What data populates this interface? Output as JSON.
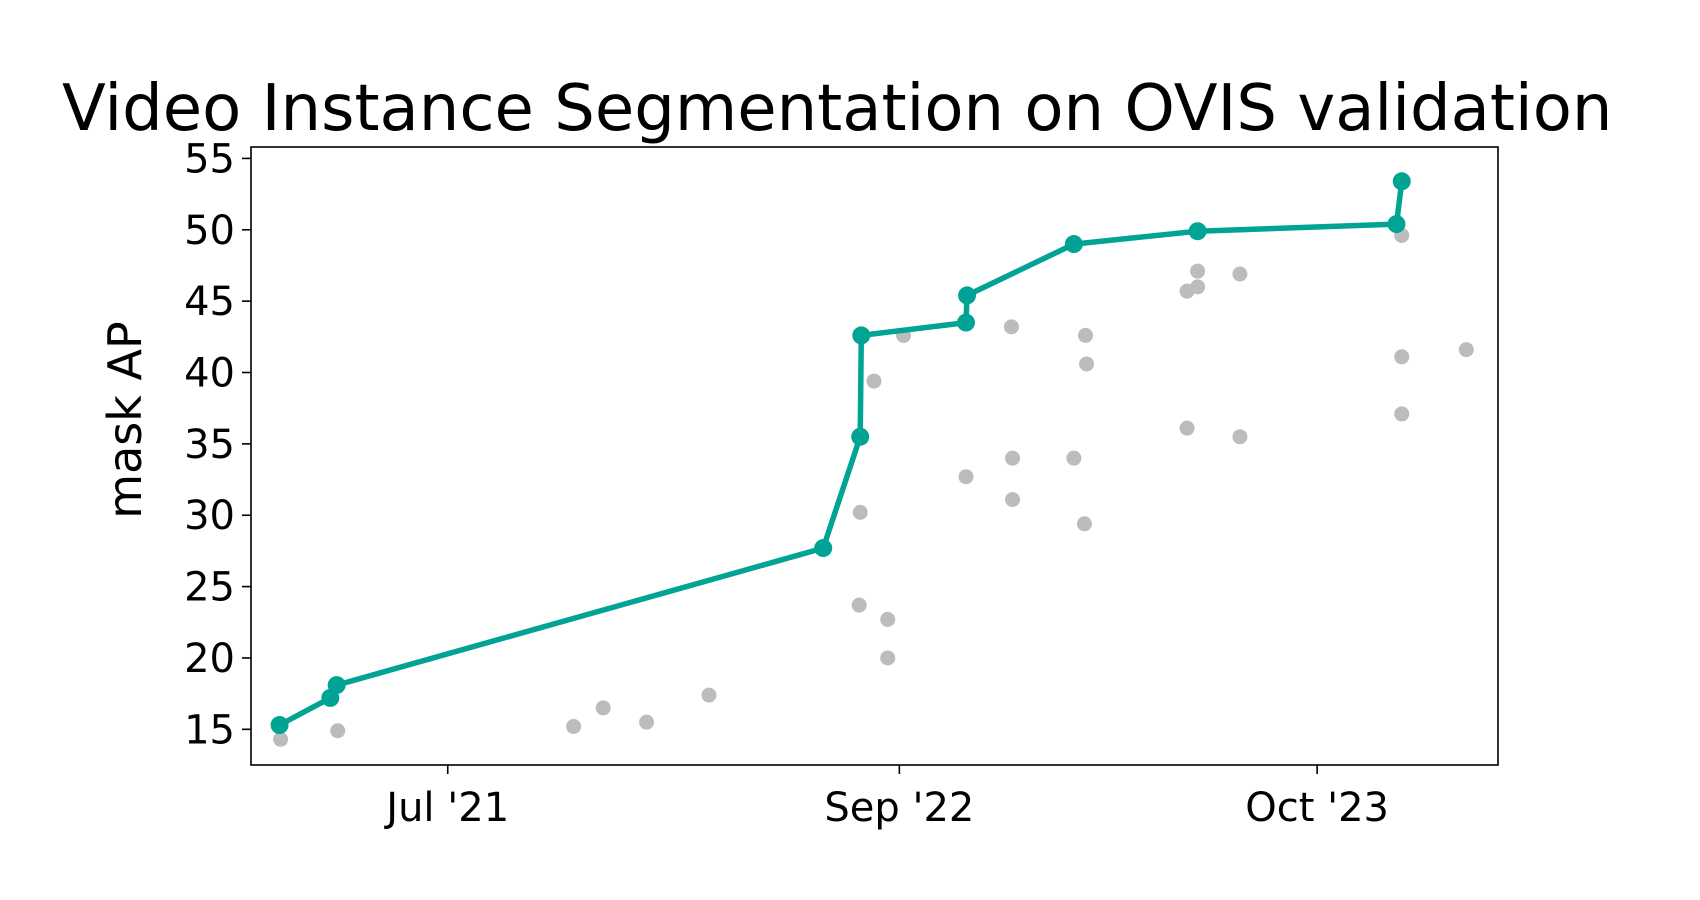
{
  "chart_data": {
    "type": "scatter",
    "title": "Video Instance Segmentation on OVIS validation",
    "xlabel": "",
    "ylabel": "mask AP",
    "ylim": [
      12.5,
      55.8
    ],
    "xlim": [
      "2020-12-27",
      "2024-03-20"
    ],
    "yticks": [
      15,
      20,
      25,
      30,
      35,
      40,
      45,
      50,
      55
    ],
    "xticks": [
      {
        "date": "2021-07-01",
        "label": "Jul '21"
      },
      {
        "date": "2022-09-01",
        "label": "Sep '22"
      },
      {
        "date": "2023-10-01",
        "label": "Oct '23"
      }
    ],
    "grid": false,
    "colors": {
      "sota": "#00a394",
      "other": "#bcbcbc"
    },
    "series": [
      {
        "kind": "line",
        "points": [
          {
            "x": "2021-01-23",
            "y": 15.3
          },
          {
            "x": "2021-03-12",
            "y": 17.2
          },
          {
            "x": "2021-03-18",
            "y": 18.1
          },
          {
            "x": "2022-06-21",
            "y": 27.7
          },
          {
            "x": "2022-07-26",
            "y": 35.5
          },
          {
            "x": "2022-07-27",
            "y": 42.6
          },
          {
            "x": "2022-11-03",
            "y": 43.5
          },
          {
            "x": "2022-11-04",
            "y": 45.4
          },
          {
            "x": "2023-02-13",
            "y": 49.0
          },
          {
            "x": "2023-06-10",
            "y": 49.9
          },
          {
            "x": "2023-12-15",
            "y": 50.4
          },
          {
            "x": "2023-12-20",
            "y": 53.4
          }
        ]
      },
      {
        "kind": "scatter",
        "points": [
          {
            "x": "2021-01-24",
            "y": 14.3
          },
          {
            "x": "2021-03-19",
            "y": 14.9
          },
          {
            "x": "2021-10-28",
            "y": 15.2
          },
          {
            "x": "2021-11-25",
            "y": 16.5
          },
          {
            "x": "2022-01-05",
            "y": 15.5
          },
          {
            "x": "2022-03-05",
            "y": 17.4
          },
          {
            "x": "2022-07-25",
            "y": 23.7
          },
          {
            "x": "2022-07-26",
            "y": 30.2
          },
          {
            "x": "2022-08-08",
            "y": 39.4
          },
          {
            "x": "2022-08-21",
            "y": 22.7
          },
          {
            "x": "2022-08-21",
            "y": 20.0
          },
          {
            "x": "2022-09-05",
            "y": 42.6
          },
          {
            "x": "2022-11-03",
            "y": 32.7
          },
          {
            "x": "2022-12-16",
            "y": 43.2
          },
          {
            "x": "2022-12-17",
            "y": 34.0
          },
          {
            "x": "2022-12-17",
            "y": 31.1
          },
          {
            "x": "2023-02-13",
            "y": 34.0
          },
          {
            "x": "2023-02-24",
            "y": 42.6
          },
          {
            "x": "2023-02-25",
            "y": 40.6
          },
          {
            "x": "2023-02-23",
            "y": 29.4
          },
          {
            "x": "2023-05-31",
            "y": 45.7
          },
          {
            "x": "2023-06-10",
            "y": 47.1
          },
          {
            "x": "2023-06-10",
            "y": 46.0
          },
          {
            "x": "2023-05-31",
            "y": 36.1
          },
          {
            "x": "2023-07-20",
            "y": 46.9
          },
          {
            "x": "2023-07-20",
            "y": 35.5
          },
          {
            "x": "2023-12-20",
            "y": 49.6
          },
          {
            "x": "2023-12-20",
            "y": 41.1
          },
          {
            "x": "2023-12-20",
            "y": 37.1
          },
          {
            "x": "2024-02-19",
            "y": 41.6
          }
        ]
      }
    ]
  }
}
